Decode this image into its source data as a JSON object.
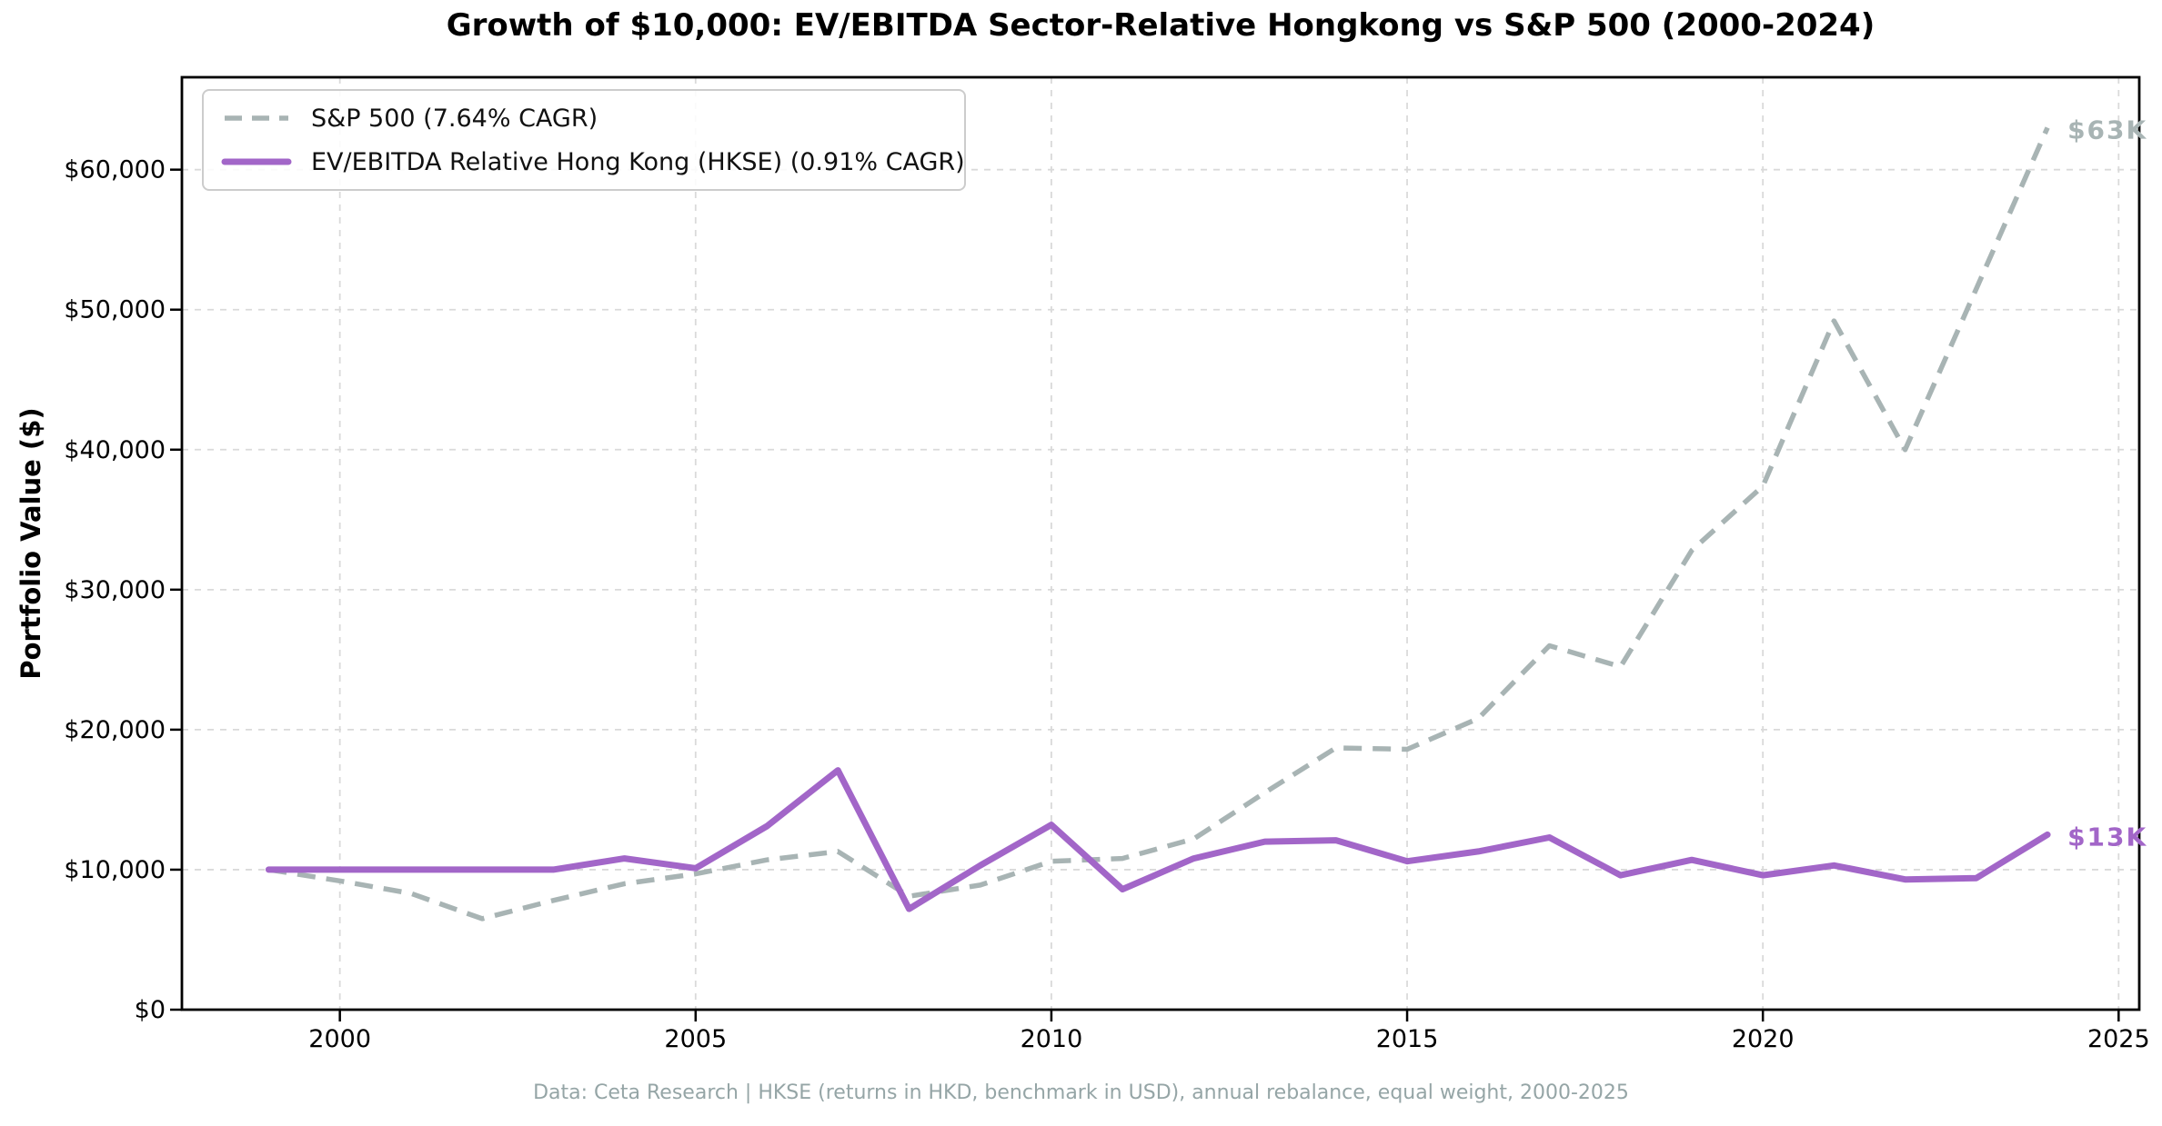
{
  "chart_data": {
    "type": "line",
    "title": "Growth of $10,000: EV/EBITDA Sector-Relative Hongkong vs S&P 500 (2000-2024)",
    "ylabel": "Portfolio Value ($)",
    "xlabel": "",
    "footer": "Data: Ceta Research | HKSE (returns in HKD, benchmark in USD), annual rebalance, equal weight, 2000-2025",
    "grid": true,
    "legend_position": "upper left",
    "xlim": [
      1997.78,
      2025.29
    ],
    "ylim": [
      0,
      66600
    ],
    "x": [
      1999,
      2000,
      2001,
      2002,
      2003,
      2004,
      2005,
      2006,
      2007,
      2008,
      2009,
      2010,
      2011,
      2012,
      2013,
      2014,
      2015,
      2016,
      2017,
      2018,
      2019,
      2020,
      2021,
      2022,
      2023,
      2024
    ],
    "series": [
      {
        "name": "S&P 500",
        "legend_label": "S&P 500 (7.64% CAGR)",
        "cagr": "7.64%",
        "color": "#a8b4b4",
        "style": "dashed",
        "values": [
          10000,
          9200,
          8300,
          6500,
          7800,
          9000,
          9700,
          10700,
          11300,
          8100,
          8900,
          10600,
          10800,
          12200,
          15500,
          18700,
          18600,
          20800,
          26000,
          24500,
          32800,
          37400,
          49200,
          40000,
          51500,
          63000
        ]
      },
      {
        "name": "EV/EBITDA Relative Hong Kong (HKSE)",
        "legend_label": "EV/EBITDA Relative Hong Kong (HKSE) (0.91% CAGR)",
        "cagr": "0.91%",
        "color": "#a266c8",
        "style": "solid",
        "values": [
          10000,
          10000,
          10000,
          10000,
          10000,
          10800,
          10100,
          13100,
          17100,
          7200,
          10300,
          13200,
          8600,
          10800,
          12000,
          12100,
          10600,
          11300,
          12300,
          9600,
          10700,
          9600,
          10300,
          9300,
          9400,
          12500
        ]
      }
    ],
    "annotations": [
      {
        "text": "$63K",
        "year": 2024,
        "value": 63000,
        "color": "#a8b4b4"
      },
      {
        "text": "$13K",
        "year": 2024,
        "value": 12500,
        "color": "#a266c8"
      }
    ],
    "yticks": [
      {
        "value": 0,
        "label": "$0"
      },
      {
        "value": 10000,
        "label": "$10,000"
      },
      {
        "value": 20000,
        "label": "$20,000"
      },
      {
        "value": 30000,
        "label": "$30,000"
      },
      {
        "value": 40000,
        "label": "$40,000"
      },
      {
        "value": 50000,
        "label": "$50,000"
      },
      {
        "value": 60000,
        "label": "$60,000"
      }
    ],
    "xticks": [
      {
        "value": 2000,
        "label": "2000"
      },
      {
        "value": 2005,
        "label": "2005"
      },
      {
        "value": 2010,
        "label": "2010"
      },
      {
        "value": 2015,
        "label": "2015"
      },
      {
        "value": 2020,
        "label": "2020"
      },
      {
        "value": 2025,
        "label": "2025"
      }
    ]
  }
}
